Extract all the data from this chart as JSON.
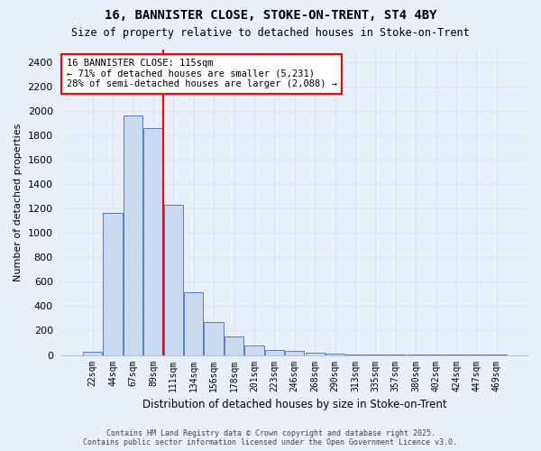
{
  "title_line1": "16, BANNISTER CLOSE, STOKE-ON-TRENT, ST4 4BY",
  "title_line2": "Size of property relative to detached houses in Stoke-on-Trent",
  "xlabel": "Distribution of detached houses by size in Stoke-on-Trent",
  "ylabel": "Number of detached properties",
  "bins": [
    "22sqm",
    "44sqm",
    "67sqm",
    "89sqm",
    "111sqm",
    "134sqm",
    "156sqm",
    "178sqm",
    "201sqm",
    "223sqm",
    "246sqm",
    "268sqm",
    "290sqm",
    "313sqm",
    "335sqm",
    "357sqm",
    "380sqm",
    "402sqm",
    "424sqm",
    "447sqm",
    "469sqm"
  ],
  "values": [
    25,
    1160,
    1960,
    1855,
    1230,
    515,
    270,
    150,
    75,
    40,
    30,
    22,
    10,
    5,
    3,
    2,
    1,
    1,
    1,
    1,
    1
  ],
  "bar_color": "#c9d9f0",
  "bar_edge_color": "#5580bb",
  "property_bin_index": 4,
  "property_line_color": "red",
  "annotation_text": "16 BANNISTER CLOSE: 115sqm\n← 71% of detached houses are smaller (5,231)\n28% of semi-detached houses are larger (2,088) →",
  "annotation_box_color": "white",
  "annotation_box_edge_color": "red",
  "ylim": [
    0,
    2500
  ],
  "yticks": [
    0,
    200,
    400,
    600,
    800,
    1000,
    1200,
    1400,
    1600,
    1800,
    2000,
    2200,
    2400
  ],
  "footer_line1": "Contains HM Land Registry data © Crown copyright and database right 2025.",
  "footer_line2": "Contains public sector information licensed under the Open Government Licence v3.0.",
  "bg_color": "#eaf0fa",
  "grid_color": "#d8e4f0",
  "spine_color": "#b0c4de"
}
